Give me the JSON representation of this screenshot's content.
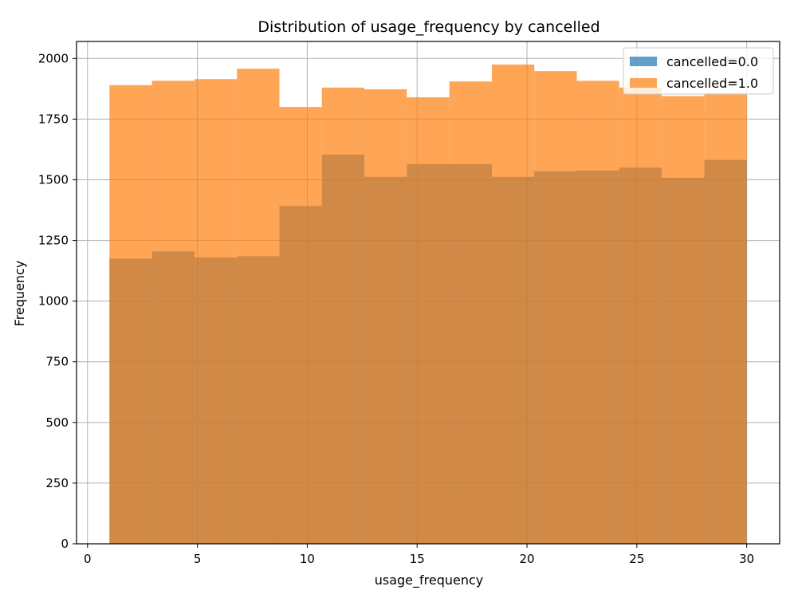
{
  "chart_data": {
    "type": "bar",
    "subtype": "histogram-overlay",
    "title": "Distribution of usage_frequency by cancelled",
    "xlabel": "usage_frequency",
    "ylabel": "Frequency",
    "xlim": [
      -0.5,
      31.5
    ],
    "ylim": [
      0,
      2070
    ],
    "xticks": [
      0,
      5,
      10,
      15,
      20,
      25,
      30
    ],
    "yticks": [
      0,
      250,
      500,
      750,
      1000,
      1250,
      1500,
      1750,
      2000
    ],
    "grid": true,
    "legend_position": "top-right",
    "bin_edges": [
      1.0,
      2.9333,
      4.8667,
      6.8,
      8.7333,
      10.6667,
      12.6,
      14.5333,
      16.4667,
      18.4,
      20.3333,
      22.2667,
      24.2,
      26.1333,
      28.0667,
      30.0
    ],
    "series": [
      {
        "name": "cancelled=0.0",
        "color": "#1f77b4",
        "opacity": 0.7,
        "values": [
          1175,
          1205,
          1180,
          1185,
          1392,
          1604,
          1512,
          1565,
          1565,
          1512,
          1535,
          1538,
          1550,
          1508,
          1582
        ]
      },
      {
        "name": "cancelled=1.0",
        "color": "#ff7f0e",
        "opacity": 0.7,
        "values": [
          1890,
          1908,
          1915,
          1958,
          1800,
          1880,
          1873,
          1840,
          1905,
          1975,
          1948,
          1908,
          1880,
          1845,
          1858
        ]
      }
    ]
  }
}
